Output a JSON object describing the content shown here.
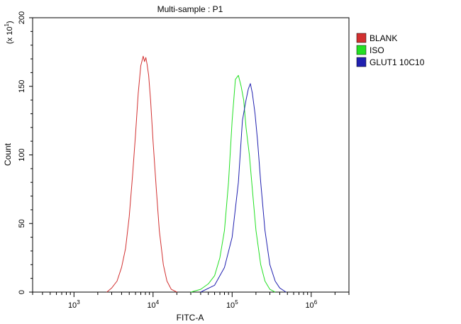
{
  "chart_data": {
    "type": "line",
    "title": "Multi-sample : P1",
    "xlabel": "FITC-A",
    "ylabel": "Count",
    "y_multiplier_label": "(x 10",
    "y_multiplier_exp": "1",
    "x_scale": "log",
    "xlim": [
      300,
      3000000
    ],
    "ylim": [
      0,
      200
    ],
    "y_ticks": [
      0,
      50,
      100,
      150,
      200
    ],
    "x_tick_labels": [
      {
        "value": 1000,
        "base": "10",
        "exp": "3"
      },
      {
        "value": 10000,
        "base": "10",
        "exp": "4"
      },
      {
        "value": 100000,
        "base": "10",
        "exp": "5"
      },
      {
        "value": 1000000,
        "base": "10",
        "exp": "6"
      }
    ],
    "grid": false,
    "legend_position": "top-right",
    "series": [
      {
        "name": "BLANK",
        "color": "#d23030",
        "x": [
          2600,
          3000,
          3500,
          4000,
          4500,
          5000,
          5500,
          6000,
          6500,
          7000,
          7500,
          7800,
          8100,
          8400,
          8800,
          9300,
          10000,
          11000,
          12000,
          13500,
          15000,
          17000,
          20000
        ],
        "y": [
          0,
          3,
          8,
          18,
          32,
          55,
          85,
          115,
          145,
          165,
          172,
          168,
          171,
          166,
          158,
          140,
          110,
          75,
          45,
          20,
          8,
          2,
          0
        ]
      },
      {
        "name": "ISO",
        "color": "#22e022",
        "x": [
          30000,
          40000,
          50000,
          60000,
          70000,
          80000,
          90000,
          100000,
          110000,
          120000,
          130000,
          140000,
          150000,
          165000,
          180000,
          200000,
          230000,
          260000,
          300000,
          350000
        ],
        "y": [
          0,
          2,
          6,
          12,
          25,
          45,
          80,
          125,
          155,
          158,
          150,
          140,
          120,
          100,
          75,
          45,
          20,
          8,
          2,
          0
        ]
      },
      {
        "name": "GLUT1 10C10",
        "color": "#2020b0",
        "x": [
          40000,
          60000,
          80000,
          100000,
          120000,
          135000,
          150000,
          160000,
          170000,
          180000,
          195000,
          210000,
          230000,
          260000,
          300000,
          350000,
          400000,
          480000
        ],
        "y": [
          0,
          5,
          18,
          40,
          80,
          125,
          140,
          148,
          152,
          145,
          130,
          110,
          80,
          45,
          20,
          8,
          3,
          0
        ]
      }
    ]
  }
}
